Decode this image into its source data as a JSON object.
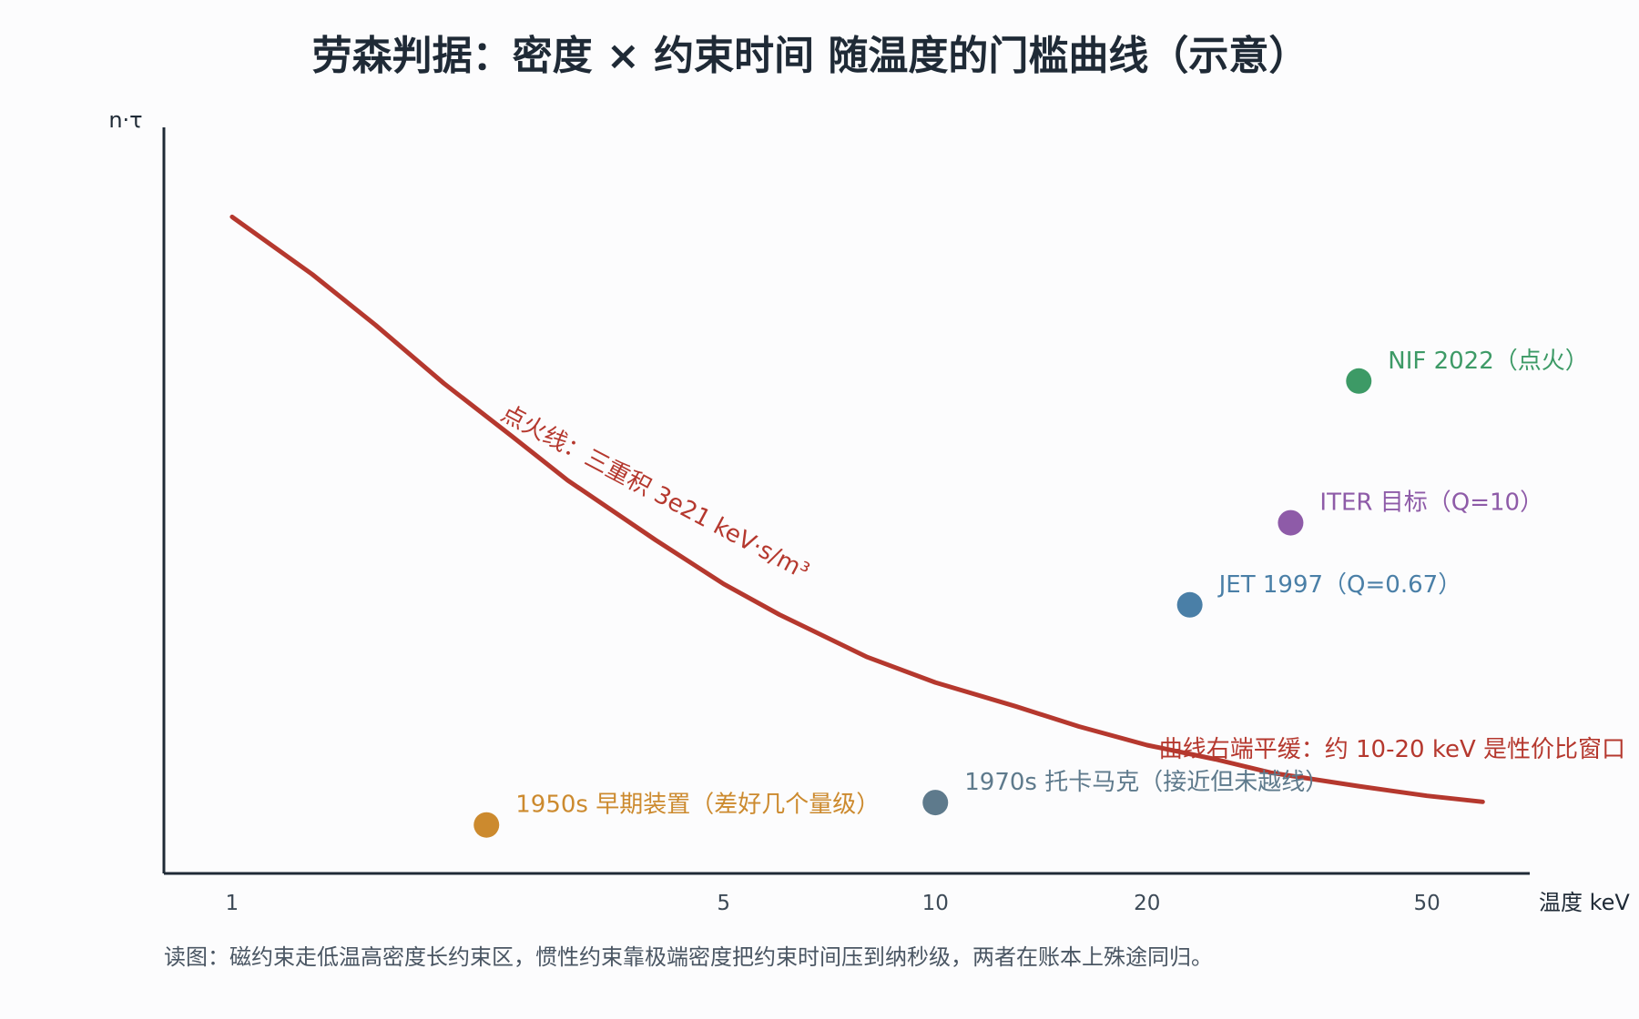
{
  "chart_data": {
    "type": "scatter",
    "title": "劳森判据：密度 × 约束时间 随温度的门槛曲线（示意）",
    "xlabel": "温度 keV",
    "ylabel": "n·τ",
    "x_scale": "log",
    "xlim": [
      0.8,
      70
    ],
    "x_ticks": [
      1,
      5,
      10,
      20,
      50
    ],
    "grid": false,
    "curve": {
      "label": "点火线：三重积 3e21 keV·s/m³",
      "x": [
        1,
        1.3,
        1.6,
        2,
        2.5,
        3,
        4,
        5,
        6,
        8,
        10,
        13,
        16,
        20,
        25,
        30,
        40,
        50,
        60
      ],
      "y": [
        0.88,
        0.803,
        0.735,
        0.657,
        0.586,
        0.527,
        0.447,
        0.388,
        0.347,
        0.29,
        0.256,
        0.224,
        0.197,
        0.172,
        0.153,
        0.135,
        0.117,
        0.104,
        0.096
      ]
    },
    "curve_note": "曲线右端平缓：约 10-20 keV 是性价比窗口",
    "points": [
      {
        "label": "1950s 早期装置（差好几个量级）",
        "x": 2.3,
        "y": 0.065
      },
      {
        "label": "1970s 托卡马克（接近但未越线）",
        "x": 10,
        "y": 0.095
      },
      {
        "label": "JET 1997（Q=0.67）",
        "x": 23,
        "y": 0.36
      },
      {
        "label": "ITER 目标（Q=10）",
        "x": 32,
        "y": 0.47
      },
      {
        "label": "NIF 2022（点火）",
        "x": 40,
        "y": 0.66
      }
    ],
    "caption": "读图：磁约束走低温高密度长约束区，惯性约束靠极端密度把约束时间压到纳秒级，两者在账本上殊途同归。"
  },
  "colors": {
    "curve": "#b5382e",
    "axis": "#1f2a36",
    "points": [
      "#cc8a2e",
      "#5e7a8c",
      "#4a7fa7",
      "#8e5ba8",
      "#3d9a66"
    ]
  }
}
